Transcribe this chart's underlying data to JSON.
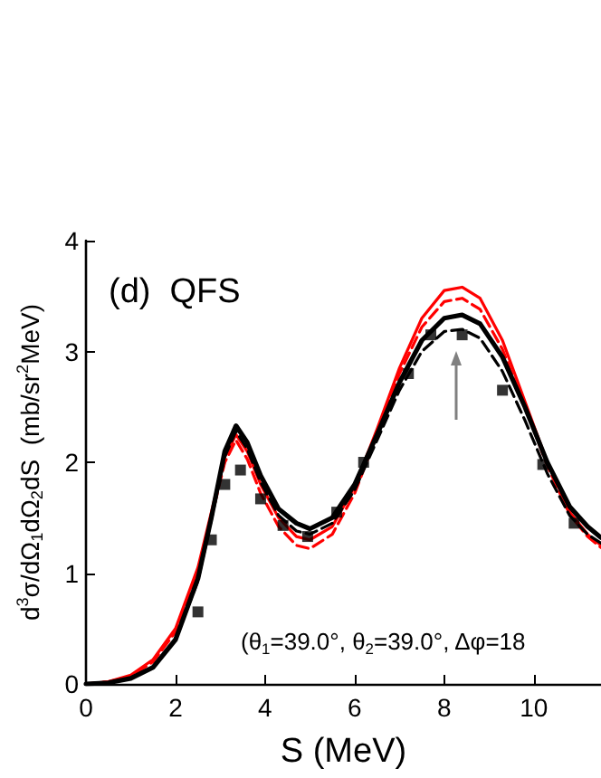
{
  "chart_data": {
    "type": "line",
    "xlabel": "S (MeV)",
    "ylabel": "d$^{3}$σ/dΩ$_{1}$dΩ$_{2}$dS  (mb/sr$^{2}$MeV)",
    "annotations": [
      "(d)  QFS",
      "(θ$_{1}$=39.0°, θ$_{2}$=39.0°, Δφ=18"
    ],
    "xlim": [
      0,
      11.5
    ],
    "xticks": [
      0,
      2,
      4,
      6,
      8,
      10
    ],
    "ylim": [
      0,
      4
    ],
    "yticks": [
      0,
      1,
      2,
      3,
      4
    ],
    "grid": false,
    "series": [
      {
        "type": "scatter",
        "marker": "square",
        "color": "#000000",
        "x": [
          2.5,
          2.8,
          3.1,
          3.45,
          3.9,
          4.4,
          4.95,
          5.6,
          6.2,
          7.2,
          7.7,
          8.4,
          9.3,
          10.2,
          10.9
        ],
        "values": [
          0.65,
          1.3,
          1.8,
          1.93,
          1.67,
          1.43,
          1.33,
          1.55,
          2.0,
          2.8,
          3.15,
          3.15,
          2.65,
          1.98,
          1.45
        ]
      },
      {
        "color": "#ff0000",
        "line_style": "solid",
        "x": [
          0,
          0.5,
          1,
          1.5,
          2,
          2.5,
          2.8,
          3.1,
          3.35,
          3.6,
          3.9,
          4.3,
          4.7,
          5.0,
          5.5,
          6,
          6.5,
          7,
          7.5,
          8,
          8.4,
          8.8,
          9.3,
          9.8,
          10.3,
          10.8,
          11.2,
          11.5
        ],
        "values": [
          0,
          0.02,
          0.08,
          0.22,
          0.5,
          1.05,
          1.55,
          2.05,
          2.25,
          2.1,
          1.8,
          1.5,
          1.33,
          1.3,
          1.42,
          1.78,
          2.3,
          2.85,
          3.3,
          3.55,
          3.58,
          3.48,
          3.1,
          2.55,
          2.0,
          1.55,
          1.35,
          1.25
        ]
      },
      {
        "color": "#ff0000",
        "line_style": "dashed",
        "x": [
          0,
          0.5,
          1,
          1.5,
          2,
          2.5,
          2.8,
          3.1,
          3.35,
          3.6,
          3.9,
          4.3,
          4.7,
          5.0,
          5.5,
          6,
          6.5,
          7,
          7.5,
          8,
          8.4,
          8.8,
          9.3,
          9.8,
          10.3,
          10.8,
          11.2,
          11.5
        ],
        "values": [
          0,
          0.02,
          0.07,
          0.2,
          0.47,
          1.0,
          1.5,
          2.0,
          2.2,
          2.03,
          1.72,
          1.42,
          1.25,
          1.22,
          1.35,
          1.72,
          2.25,
          2.8,
          3.22,
          3.45,
          3.48,
          3.38,
          3.02,
          2.5,
          1.97,
          1.53,
          1.33,
          1.23
        ]
      },
      {
        "color": "#000000",
        "line_style": "dashed",
        "x": [
          0,
          0.5,
          1,
          1.5,
          2,
          2.5,
          2.8,
          3.1,
          3.35,
          3.6,
          3.9,
          4.3,
          4.7,
          5.0,
          5.5,
          6,
          6.5,
          7,
          7.5,
          8,
          8.4,
          8.8,
          9.3,
          9.8,
          10.3,
          10.8,
          11.2,
          11.5
        ],
        "values": [
          0,
          0.01,
          0.05,
          0.15,
          0.4,
          0.93,
          1.48,
          2.05,
          2.28,
          2.12,
          1.82,
          1.52,
          1.38,
          1.35,
          1.45,
          1.75,
          2.2,
          2.65,
          3.0,
          3.18,
          3.2,
          3.12,
          2.82,
          2.38,
          1.9,
          1.52,
          1.35,
          1.27
        ]
      },
      {
        "color": "#000000",
        "line_style": "solid",
        "x": [
          0,
          0.5,
          1,
          1.5,
          2,
          2.5,
          2.8,
          3.1,
          3.35,
          3.6,
          3.9,
          4.3,
          4.7,
          5.0,
          5.5,
          6,
          6.5,
          7,
          7.5,
          8,
          8.4,
          8.8,
          9.3,
          9.8,
          10.3,
          10.8,
          11.2,
          11.5
        ],
        "values": [
          0,
          0.01,
          0.05,
          0.15,
          0.4,
          0.95,
          1.5,
          2.1,
          2.33,
          2.18,
          1.88,
          1.58,
          1.45,
          1.4,
          1.5,
          1.8,
          2.25,
          2.72,
          3.1,
          3.3,
          3.33,
          3.25,
          2.95,
          2.5,
          2.0,
          1.6,
          1.42,
          1.32
        ]
      }
    ]
  }
}
